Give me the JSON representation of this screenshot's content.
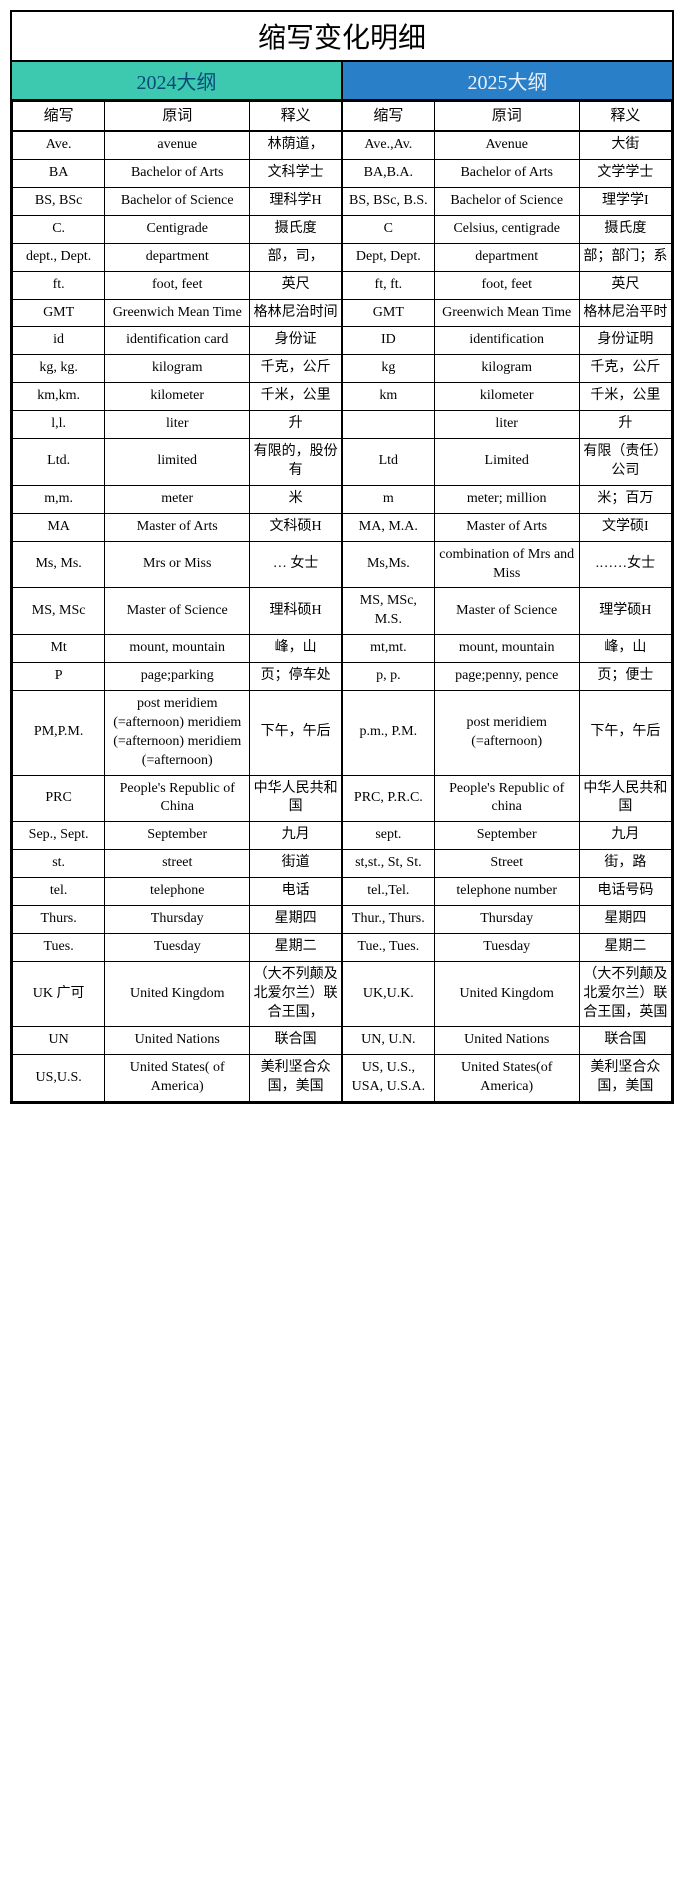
{
  "title": "缩写变化明细",
  "year_left": "2024大纲",
  "year_right": "2025大纲",
  "headers": {
    "abbr": "缩写",
    "word": "原词",
    "mean": "释义"
  },
  "rows": [
    {
      "l_abbr": "Ave.",
      "l_word": "avenue",
      "l_mean": "林荫道，",
      "r_abbr": "Ave.,Av.",
      "r_word": "Avenue",
      "r_mean": "大街"
    },
    {
      "l_abbr": "BA",
      "l_word": "Bachelor of Arts",
      "l_mean": "文科学士",
      "r_abbr": "BA,B.A.",
      "r_word": "Bachelor of Arts",
      "r_mean": "文学学士"
    },
    {
      "l_abbr": "BS, BSc",
      "l_word": "Bachelor of Science",
      "l_mean": "理科学H",
      "r_abbr": "BS, BSc, B.S.",
      "r_word": "Bachelor of Science",
      "r_mean": "理学学I"
    },
    {
      "l_abbr": "C.",
      "l_word": "Centigrade",
      "l_mean": "摄氏度",
      "r_abbr": "C",
      "r_word": "Celsius, centigrade",
      "r_mean": "摄氏度"
    },
    {
      "l_abbr": "dept., Dept.",
      "l_word": "department",
      "l_mean": "部，司，",
      "r_abbr": "Dept, Dept.",
      "r_word": "department",
      "r_mean": "部；部门；系"
    },
    {
      "l_abbr": "ft.",
      "l_word": "foot, feet",
      "l_mean": "英尺",
      "r_abbr": "ft, ft.",
      "r_word": "foot, feet",
      "r_mean": "英尺"
    },
    {
      "l_abbr": "GMT",
      "l_word": "Greenwich Mean Time",
      "l_mean": "格林尼治时间",
      "r_abbr": "GMT",
      "r_word": "Greenwich Mean Time",
      "r_mean": "格林尼治平时"
    },
    {
      "l_abbr": "id",
      "l_word": "identification card",
      "l_mean": "身份证",
      "r_abbr": "ID",
      "r_word": "identification",
      "r_mean": "身份证明"
    },
    {
      "l_abbr": "kg, kg.",
      "l_word": "kilogram",
      "l_mean": "千克，公斤",
      "r_abbr": "kg",
      "r_word": "kilogram",
      "r_mean": "千克，公斤"
    },
    {
      "l_abbr": "km,km.",
      "l_word": "kilometer",
      "l_mean": "千米，公里",
      "r_abbr": "km",
      "r_word": "kilometer",
      "r_mean": "千米，公里"
    },
    {
      "l_abbr": "l,l.",
      "l_word": "liter",
      "l_mean": "升",
      "r_abbr": "",
      "r_word": "liter",
      "r_mean": "升"
    },
    {
      "l_abbr": "Ltd.",
      "l_word": "limited",
      "l_mean": "有限的，股份有",
      "r_abbr": "Ltd",
      "r_word": "Limited",
      "r_mean": "有限（责任）公司"
    },
    {
      "l_abbr": "m,m.",
      "l_word": "meter",
      "l_mean": "米",
      "r_abbr": "m",
      "r_word": "meter; million",
      "r_mean": "米；百万"
    },
    {
      "l_abbr": "MA",
      "l_word": "Master of Arts",
      "l_mean": "文科硕H",
      "r_abbr": "MA, M.A.",
      "r_word": "Master of Arts",
      "r_mean": "文学硕I"
    },
    {
      "l_abbr": "Ms, Ms.",
      "l_word": "Mrs or Miss",
      "l_mean": "… 女士",
      "r_abbr": "Ms,Ms.",
      "r_word": "combination of Mrs and Miss",
      "r_mean": ".……女士"
    },
    {
      "l_abbr": "MS, MSc",
      "l_word": "Master of Science",
      "l_mean": "理科硕H",
      "r_abbr": "MS, MSc, M.S.",
      "r_word": "Master of Science",
      "r_mean": "理学硕H"
    },
    {
      "l_abbr": "Mt",
      "l_word": "mount, mountain",
      "l_mean": "峰，山",
      "r_abbr": "mt,mt.",
      "r_word": "mount, mountain",
      "r_mean": "峰，山"
    },
    {
      "l_abbr": "P",
      "l_word": "page;parking",
      "l_mean": "页；停车处",
      "r_abbr": "p, p.",
      "r_word": "page;penny, pence",
      "r_mean": "页；便士"
    },
    {
      "l_abbr": "PM,P.M.",
      "l_word": "post meridiem (=afternoon) meridiem (=afternoon) meridiem (=afternoon)",
      "l_mean": "下午，午后",
      "r_abbr": "p.m., P.M.",
      "r_word": "post meridiem (=afternoon)",
      "r_mean": "下午，午后"
    },
    {
      "l_abbr": "PRC",
      "l_word": "People's Republic of China",
      "l_mean": "中华人民共和国",
      "r_abbr": "PRC, P.R.C.",
      "r_word": "People's Republic of china",
      "r_mean": "中华人民共和国"
    },
    {
      "l_abbr": "Sep., Sept.",
      "l_word": "September",
      "l_mean": "九月",
      "r_abbr": "sept.",
      "r_word": "September",
      "r_mean": "九月"
    },
    {
      "l_abbr": "st.",
      "l_word": "street",
      "l_mean": "街道",
      "r_abbr": "st,st., St, St.",
      "r_word": "Street",
      "r_mean": "街，路"
    },
    {
      "l_abbr": "tel.",
      "l_word": "telephone",
      "l_mean": "电话",
      "r_abbr": "tel.,Tel.",
      "r_word": "telephone number",
      "r_mean": "电话号码"
    },
    {
      "l_abbr": "Thurs.",
      "l_word": "Thursday",
      "l_mean": "星期四",
      "r_abbr": "Thur., Thurs.",
      "r_word": "Thursday",
      "r_mean": "星期四"
    },
    {
      "l_abbr": "Tues.",
      "l_word": "Tuesday",
      "l_mean": "星期二",
      "r_abbr": "Tue., Tues.",
      "r_word": "Tuesday",
      "r_mean": "星期二"
    },
    {
      "l_abbr": "UK 广可",
      "l_word": "United Kingdom",
      "l_mean": "（大不列颠及北爱尔兰）联合王国，",
      "r_abbr": "UK,U.K.",
      "r_word": "United Kingdom",
      "r_mean": "（大不列颠及北爱尔兰）联合王国，英国"
    },
    {
      "l_abbr": "UN",
      "l_word": "United Nations",
      "l_mean": "联合国",
      "r_abbr": "UN, U.N.",
      "r_word": "United Nations",
      "r_mean": "联合国"
    },
    {
      "l_abbr": "US,U.S.",
      "l_word": "United States( of America)",
      "l_mean": "美利坚合众国，美国",
      "r_abbr": "US, U.S., USA, U.S.A.",
      "r_word": "United States(of America)",
      "r_mean": "美利坚合众国，美国"
    }
  ]
}
